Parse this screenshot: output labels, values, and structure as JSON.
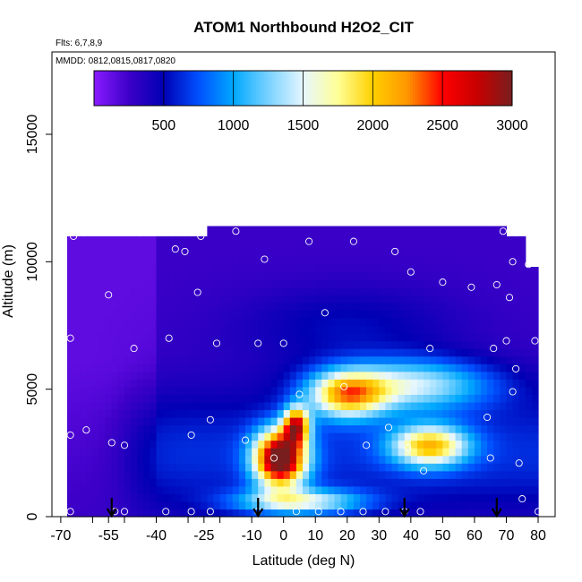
{
  "chart_data": {
    "type": "heatmap",
    "title": "ATOM1 Northbound H2O2_CIT",
    "flights_label": "Flts: 6,7,8,9",
    "dates_label": "MMDD: 0812,0815,0817,0820",
    "xlabel": "Latitude (deg N)",
    "ylabel": "Altitude (m)",
    "xlim": [
      -70,
      80
    ],
    "ylim": [
      0,
      17500
    ],
    "x_ticks": [
      "-70",
      "-55",
      "-40",
      "-25",
      "-10",
      "0",
      "10",
      "20",
      "30",
      "40",
      "50",
      "60",
      "70",
      "80"
    ],
    "x_tick_values": [
      -70,
      -55,
      -40,
      -25,
      -10,
      0,
      10,
      20,
      30,
      40,
      50,
      60,
      70,
      80
    ],
    "x_ticks_extra": [
      "-60",
      "-50",
      "-30",
      "-20"
    ],
    "x_ticks_extra_values": [
      -60,
      -50,
      -30,
      -20
    ],
    "y_ticks": [
      "0",
      "5000",
      "10000",
      "15000"
    ],
    "y_tick_values": [
      0,
      5000,
      10000,
      15000
    ],
    "colorbar": {
      "range": [
        0,
        3000
      ],
      "tick_labels": [
        "500",
        "1000",
        "1500",
        "2000",
        "2500",
        "3000"
      ],
      "tick_values": [
        500,
        1000,
        1500,
        2000,
        2500,
        3000
      ],
      "stops": [
        {
          "v": 0,
          "c": "#8a1bff"
        },
        {
          "v": 250,
          "c": "#3d00c8"
        },
        {
          "v": 500,
          "c": "#0000b4"
        },
        {
          "v": 750,
          "c": "#0050ff"
        },
        {
          "v": 1000,
          "c": "#00a8ff"
        },
        {
          "v": 1250,
          "c": "#78d2ff"
        },
        {
          "v": 1500,
          "c": "#e6f6ff"
        },
        {
          "v": 1750,
          "c": "#ffff96"
        },
        {
          "v": 2000,
          "c": "#ffd000"
        },
        {
          "v": 2250,
          "c": "#ff9600"
        },
        {
          "v": 2500,
          "c": "#ff0000"
        },
        {
          "v": 2750,
          "c": "#c80000"
        },
        {
          "v": 3000,
          "c": "#781e1e"
        }
      ]
    },
    "arrow_latitudes": [
      -54,
      -8,
      38,
      67
    ],
    "field_extent": {
      "lat_min": -68,
      "lat_max": 80,
      "alt_min": 0,
      "alt_max": 11000
    },
    "hotspots": [
      {
        "lat": -1,
        "alt": 2300,
        "peak": 2700,
        "sx": 8,
        "sy": 1100
      },
      {
        "lat": 4,
        "alt": 3600,
        "peak": 1900,
        "sx": 4,
        "sy": 700
      },
      {
        "lat": 20,
        "alt": 4800,
        "peak": 1500,
        "sx": 12,
        "sy": 900
      },
      {
        "lat": 46,
        "alt": 2800,
        "peak": 1500,
        "sx": 12,
        "sy": 800
      },
      {
        "lat": 40,
        "alt": 5200,
        "peak": 1050,
        "sx": 25,
        "sy": 1000
      },
      {
        "lat": 5,
        "alt": 600,
        "peak": 1100,
        "sx": 20,
        "sy": 500
      }
    ],
    "sample_points": [
      {
        "lat": -67,
        "alt": 200
      },
      {
        "lat": -67,
        "alt": 3200
      },
      {
        "lat": -67,
        "alt": 7000
      },
      {
        "lat": -66,
        "alt": 11000
      },
      {
        "lat": -62,
        "alt": 3400
      },
      {
        "lat": -55,
        "alt": 8700
      },
      {
        "lat": -54,
        "alt": 2900
      },
      {
        "lat": -53,
        "alt": 200
      },
      {
        "lat": -50,
        "alt": 200
      },
      {
        "lat": -50,
        "alt": 2800
      },
      {
        "lat": -47,
        "alt": 6600
      },
      {
        "lat": -37,
        "alt": 200
      },
      {
        "lat": -36,
        "alt": 7000
      },
      {
        "lat": -34,
        "alt": 10500
      },
      {
        "lat": -31,
        "alt": 10400
      },
      {
        "lat": -29,
        "alt": 200
      },
      {
        "lat": -29,
        "alt": 3200
      },
      {
        "lat": -27,
        "alt": 8800
      },
      {
        "lat": -26,
        "alt": 11000
      },
      {
        "lat": -23,
        "alt": 200
      },
      {
        "lat": -23,
        "alt": 3800
      },
      {
        "lat": -21,
        "alt": 6800
      },
      {
        "lat": -15,
        "alt": 11200
      },
      {
        "lat": -12,
        "alt": 3000
      },
      {
        "lat": -8,
        "alt": 200
      },
      {
        "lat": -8,
        "alt": 6800
      },
      {
        "lat": -6,
        "alt": 10100
      },
      {
        "lat": -3,
        "alt": 2300
      },
      {
        "lat": 0,
        "alt": 6800
      },
      {
        "lat": 4,
        "alt": 200
      },
      {
        "lat": 5,
        "alt": 4800
      },
      {
        "lat": 8,
        "alt": 10800
      },
      {
        "lat": 11,
        "alt": 200
      },
      {
        "lat": 13,
        "alt": 8000
      },
      {
        "lat": 18,
        "alt": 200
      },
      {
        "lat": 19,
        "alt": 5100
      },
      {
        "lat": 22,
        "alt": 10800
      },
      {
        "lat": 25,
        "alt": 200
      },
      {
        "lat": 26,
        "alt": 2800
      },
      {
        "lat": 32,
        "alt": 200
      },
      {
        "lat": 33,
        "alt": 3500
      },
      {
        "lat": 35,
        "alt": 10400
      },
      {
        "lat": 38,
        "alt": 200
      },
      {
        "lat": 39,
        "alt": 2700
      },
      {
        "lat": 40,
        "alt": 9600
      },
      {
        "lat": 43,
        "alt": 200
      },
      {
        "lat": 44,
        "alt": 1800
      },
      {
        "lat": 46,
        "alt": 6600
      },
      {
        "lat": 50,
        "alt": 9200
      },
      {
        "lat": 59,
        "alt": 9000
      },
      {
        "lat": 64,
        "alt": 3900
      },
      {
        "lat": 65,
        "alt": 2300
      },
      {
        "lat": 66,
        "alt": 6600
      },
      {
        "lat": 67,
        "alt": 9100
      },
      {
        "lat": 69,
        "alt": 11200
      },
      {
        "lat": 70,
        "alt": 6900
      },
      {
        "lat": 71,
        "alt": 8600
      },
      {
        "lat": 72,
        "alt": 4900
      },
      {
        "lat": 72,
        "alt": 10000
      },
      {
        "lat": 73,
        "alt": 5800
      },
      {
        "lat": 74,
        "alt": 2100
      },
      {
        "lat": 75,
        "alt": 700
      },
      {
        "lat": 77,
        "alt": 9900
      },
      {
        "lat": 79,
        "alt": 6900
      },
      {
        "lat": 80,
        "alt": 200
      }
    ]
  }
}
